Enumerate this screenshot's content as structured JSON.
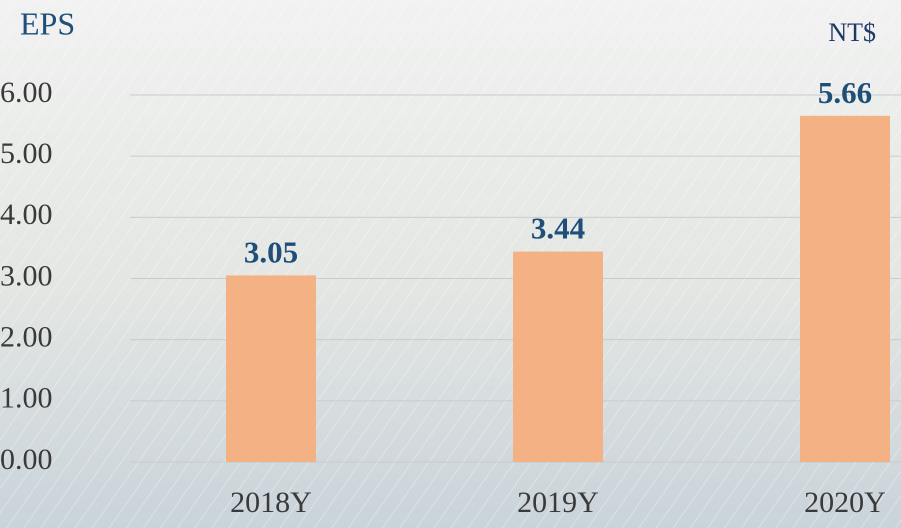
{
  "chart_data": {
    "type": "bar",
    "title": "EPS",
    "unit": "NT$",
    "categories": [
      "2018Y",
      "2019Y",
      "2020Y"
    ],
    "values": [
      3.05,
      3.44,
      5.66
    ],
    "color": "#f4b183",
    "ylim": [
      0,
      6
    ],
    "yticks": [
      {
        "value": 0,
        "label": "0.00"
      },
      {
        "value": 1,
        "label": "1.00"
      },
      {
        "value": 2,
        "label": "2.00"
      },
      {
        "value": 3,
        "label": "3.00"
      },
      {
        "value": 4,
        "label": "4.00"
      },
      {
        "value": 5,
        "label": "5.00"
      },
      {
        "value": 6,
        "label": "6.00"
      }
    ],
    "grid": true
  }
}
